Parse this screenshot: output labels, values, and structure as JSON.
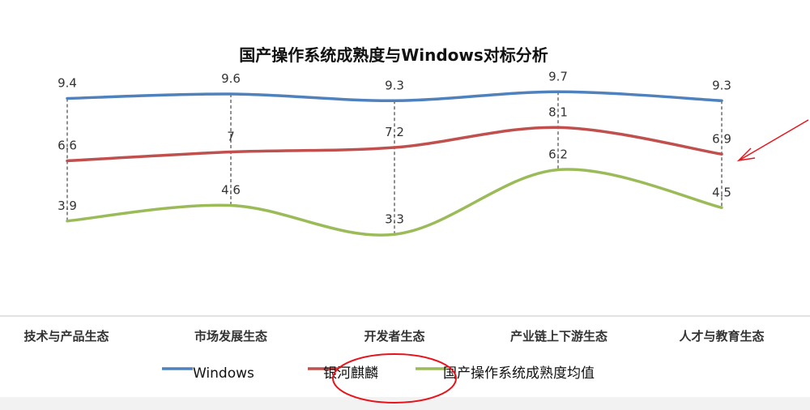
{
  "chart_data": {
    "type": "line",
    "title": "国产操作系统成熟度与Windows对标分析",
    "categories": [
      "技术与产品生态",
      "市场发展生态",
      "开发者生态",
      "产业链上下游生态",
      "人才与教育生态"
    ],
    "series": [
      {
        "name": "Windows",
        "values": [
          9.4,
          9.6,
          9.3,
          9.7,
          9.3
        ],
        "labels": [
          "9.4",
          "9.6",
          "9.3",
          "9.7",
          "9.3"
        ],
        "color": "#4F81BD"
      },
      {
        "name": "银河麒麟",
        "values": [
          6.6,
          7,
          7.2,
          8.1,
          6.9
        ],
        "labels": [
          "6.6",
          "7",
          "7.2",
          "8.1",
          "6.9"
        ],
        "color": "#C0504D"
      },
      {
        "name": "国产操作系统成熟度均值",
        "values": [
          3.9,
          4.6,
          3.3,
          6.2,
          4.5
        ],
        "labels": [
          "3.9",
          "4.6",
          "3.3",
          "6.2",
          "4.5"
        ],
        "color": "#9BBB59"
      }
    ],
    "smooth": true,
    "drop_lines": true,
    "grid": false,
    "legend": "bottom",
    "annotations": [
      {
        "type": "red-ellipse",
        "target": "legend 银河麒麟"
      },
      {
        "type": "red-arrow",
        "target": "银河麒麟 6.9"
      }
    ],
    "annotation_color": "#E8141B"
  }
}
